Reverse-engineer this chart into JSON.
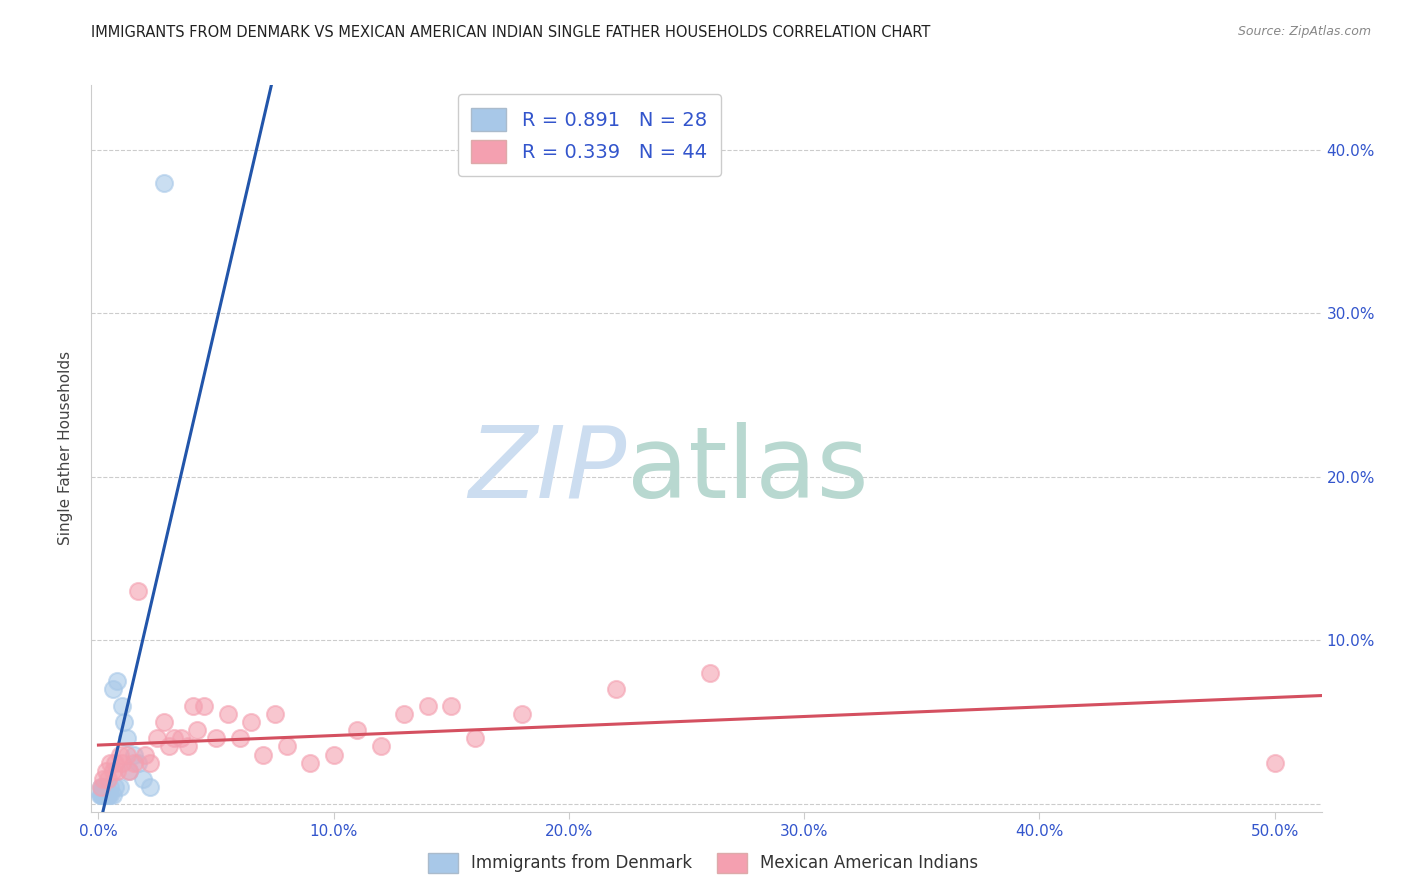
{
  "title": "IMMIGRANTS FROM DENMARK VS MEXICAN AMERICAN INDIAN SINGLE FATHER HOUSEHOLDS CORRELATION CHART",
  "source": "Source: ZipAtlas.com",
  "ylabel": "Single Father Households",
  "xlim": [
    -0.003,
    0.52
  ],
  "ylim": [
    -0.005,
    0.44
  ],
  "xlabel_ticks": [
    0.0,
    0.1,
    0.2,
    0.3,
    0.4,
    0.5
  ],
  "xlabel_labels": [
    "0.0%",
    "10.0%",
    "20.0%",
    "30.0%",
    "40.0%",
    "50.0%"
  ],
  "yright_ticks": [
    0.0,
    0.1,
    0.2,
    0.3,
    0.4
  ],
  "yright_labels": [
    "",
    "10.0%",
    "20.0%",
    "30.0%",
    "40.0%"
  ],
  "yticks_grid": [
    0.0,
    0.1,
    0.2,
    0.3,
    0.4
  ],
  "blue_R": 0.891,
  "blue_N": 28,
  "pink_R": 0.339,
  "pink_N": 44,
  "blue_color": "#a8c8e8",
  "pink_color": "#f4a0b0",
  "blue_line_color": "#2255aa",
  "pink_line_color": "#d45060",
  "legend1_label": "Immigrants from Denmark",
  "legend2_label": "Mexican American Indians",
  "blue_scatter_x": [
    0.0005,
    0.001,
    0.001,
    0.0015,
    0.002,
    0.002,
    0.002,
    0.0025,
    0.003,
    0.003,
    0.004,
    0.004,
    0.005,
    0.005,
    0.006,
    0.006,
    0.007,
    0.008,
    0.009,
    0.01,
    0.011,
    0.012,
    0.013,
    0.015,
    0.017,
    0.019,
    0.022,
    0.028
  ],
  "blue_scatter_y": [
    0.005,
    0.005,
    0.01,
    0.005,
    0.005,
    0.01,
    0.01,
    0.005,
    0.005,
    0.01,
    0.005,
    0.005,
    0.005,
    0.01,
    0.005,
    0.07,
    0.01,
    0.075,
    0.01,
    0.06,
    0.05,
    0.04,
    0.02,
    0.03,
    0.025,
    0.015,
    0.01,
    0.38
  ],
  "pink_scatter_x": [
    0.001,
    0.002,
    0.003,
    0.004,
    0.005,
    0.006,
    0.007,
    0.008,
    0.009,
    0.01,
    0.012,
    0.013,
    0.015,
    0.017,
    0.02,
    0.022,
    0.025,
    0.028,
    0.03,
    0.032,
    0.035,
    0.038,
    0.04,
    0.042,
    0.045,
    0.05,
    0.055,
    0.06,
    0.065,
    0.07,
    0.075,
    0.08,
    0.09,
    0.1,
    0.11,
    0.12,
    0.13,
    0.14,
    0.15,
    0.16,
    0.18,
    0.22,
    0.26,
    0.5
  ],
  "pink_scatter_y": [
    0.01,
    0.015,
    0.02,
    0.015,
    0.025,
    0.02,
    0.025,
    0.02,
    0.03,
    0.025,
    0.03,
    0.02,
    0.025,
    0.13,
    0.03,
    0.025,
    0.04,
    0.05,
    0.035,
    0.04,
    0.04,
    0.035,
    0.06,
    0.045,
    0.06,
    0.04,
    0.055,
    0.04,
    0.05,
    0.03,
    0.055,
    0.035,
    0.025,
    0.03,
    0.045,
    0.035,
    0.055,
    0.06,
    0.06,
    0.04,
    0.055,
    0.07,
    0.08,
    0.025
  ]
}
